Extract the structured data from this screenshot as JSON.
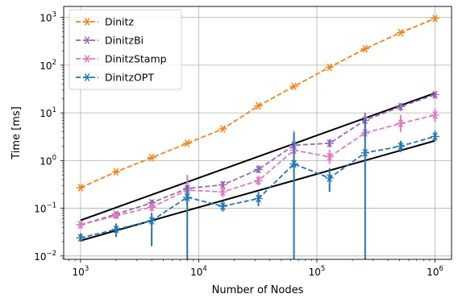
{
  "chart_data": {
    "type": "line",
    "xlabel": "Number of Nodes",
    "ylabel": "Time [ms]",
    "xscale": "log",
    "yscale": "log",
    "xlim": [
      720,
      1380000
    ],
    "ylim": [
      0.0085,
      1700
    ],
    "grid": true,
    "legend_position": "upper-left",
    "x_ticks": [
      {
        "value": 1000,
        "base": "10",
        "exp": "3"
      },
      {
        "value": 10000,
        "base": "10",
        "exp": "4"
      },
      {
        "value": 100000,
        "base": "10",
        "exp": "5"
      },
      {
        "value": 1000000,
        "base": "10",
        "exp": "6"
      }
    ],
    "y_ticks": [
      {
        "value": 0.01,
        "base": "10",
        "exp": "−2"
      },
      {
        "value": 0.1,
        "base": "10",
        "exp": "−1"
      },
      {
        "value": 1,
        "base": "10",
        "exp": "0"
      },
      {
        "value": 10,
        "base": "10",
        "exp": "1"
      },
      {
        "value": 100,
        "base": "10",
        "exp": "2"
      },
      {
        "value": 1000,
        "base": "10",
        "exp": "3"
      }
    ],
    "x": [
      1000,
      2000,
      4000,
      8000,
      16000,
      32000,
      64000,
      128000,
      256000,
      512000,
      1000000
    ],
    "series": [
      {
        "name": "Dinitz",
        "color": "#ff7f0e",
        "values": [
          0.27,
          0.58,
          1.15,
          2.3,
          4.6,
          14,
          36,
          90,
          220,
          480,
          950
        ],
        "err_low": [
          0.27,
          0.58,
          1.15,
          2.3,
          4.6,
          14,
          36,
          90,
          220,
          480,
          950
        ],
        "err_high": [
          0.27,
          0.58,
          1.15,
          2.3,
          4.6,
          14,
          36,
          90,
          220,
          480,
          950
        ]
      },
      {
        "name": "DinitzBi",
        "color": "#9467bd",
        "values": [
          0.045,
          0.075,
          0.13,
          0.26,
          0.31,
          0.65,
          2.1,
          2.3,
          7,
          13.5,
          24
        ],
        "err_low": [
          0.04,
          0.065,
          0.11,
          0.2,
          0.26,
          0.55,
          1.6,
          1.9,
          5,
          11,
          20
        ],
        "err_high": [
          0.05,
          0.085,
          0.15,
          0.33,
          0.37,
          0.8,
          3.2,
          2.8,
          10,
          16,
          28
        ]
      },
      {
        "name": "DinitzStamp",
        "color": "#e377c2",
        "values": [
          0.045,
          0.07,
          0.105,
          0.24,
          0.22,
          0.38,
          1.65,
          1.2,
          3.8,
          6,
          9
        ],
        "err_low": [
          0.038,
          0.06,
          0.085,
          0.12,
          0.17,
          0.3,
          0.9,
          0.85,
          2.4,
          4,
          6.5
        ],
        "err_high": [
          0.052,
          0.08,
          0.125,
          0.5,
          0.28,
          0.48,
          4.2,
          1.7,
          6,
          9,
          12
        ]
      },
      {
        "name": "DinitzOPT",
        "color": "#1f77b4",
        "values": [
          0.024,
          0.036,
          0.055,
          0.17,
          0.11,
          0.16,
          0.85,
          0.43,
          1.45,
          2,
          3.2
        ],
        "err_low": [
          0.02,
          0.025,
          0.016,
          0.0085,
          0.085,
          0.11,
          0.0085,
          0.22,
          0.0085,
          1.5,
          2.5
        ],
        "err_high": [
          0.03,
          0.048,
          0.08,
          0.3,
          0.14,
          0.22,
          3.8,
          0.7,
          7.5,
          2.6,
          4.2
        ]
      }
    ],
    "reference_lines": [
      {
        "color": "#000000",
        "x": [
          1000,
          1000000
        ],
        "y": [
          0.056,
          26
        ]
      },
      {
        "color": "#000000",
        "x": [
          1000,
          1000000
        ],
        "y": [
          0.021,
          2.6
        ]
      }
    ]
  }
}
